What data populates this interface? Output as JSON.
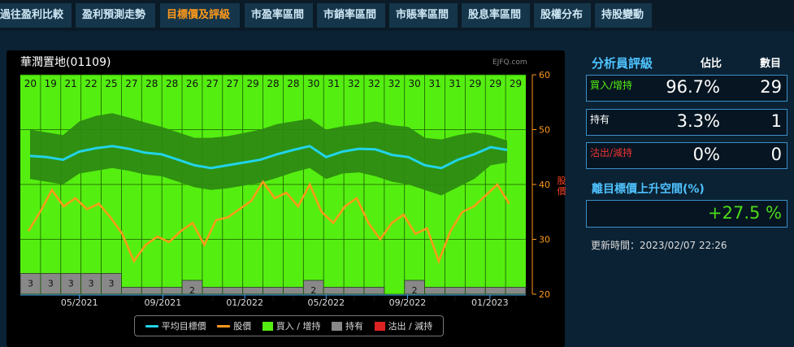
{
  "tabs": [
    {
      "label": "過往盈利比較",
      "active": false
    },
    {
      "label": "盈利預測走勢",
      "active": false
    },
    {
      "label": "目標價及評級",
      "active": true
    },
    {
      "label": "市盈率區間",
      "active": false
    },
    {
      "label": "市銷率區間",
      "active": false
    },
    {
      "label": "市賬率區間",
      "active": false
    },
    {
      "label": "股息率區間",
      "active": false
    },
    {
      "label": "股權分布",
      "active": false
    },
    {
      "label": "持股變動",
      "active": false
    }
  ],
  "chart_panel": {
    "title": "華潤置地(01109)",
    "source": "EJFQ.com"
  },
  "chart_data": {
    "type": "line",
    "x_tick_labels": [
      "05/2021",
      "09/2021",
      "01/2022",
      "05/2022",
      "09/2022",
      "01/2023"
    ],
    "y_right_ticks": [
      20,
      30,
      40,
      50,
      60
    ],
    "ylim": [
      20,
      60
    ],
    "ylabel": "股價",
    "grid": true,
    "legend_position": "bottom",
    "buy_counts": [
      20,
      19,
      21,
      22,
      25,
      27,
      28,
      28,
      26,
      27,
      27,
      29,
      28,
      28,
      30,
      31,
      32,
      32,
      32,
      30,
      31,
      31,
      29,
      29,
      29
    ],
    "hold_counts": [
      3,
      3,
      3,
      3,
      3,
      1,
      1,
      1,
      2,
      1,
      1,
      1,
      1,
      1,
      2,
      1,
      1,
      1,
      0,
      2,
      1,
      1,
      1,
      1,
      1
    ],
    "sell_counts": [
      0,
      0,
      0,
      0,
      0,
      0,
      0,
      0,
      0,
      0,
      0,
      0,
      0,
      0,
      0,
      0,
      0,
      0,
      0,
      0,
      0,
      0,
      0,
      0,
      0
    ],
    "avg_target": [
      45.2,
      45.0,
      44.5,
      46.0,
      46.6,
      47.0,
      46.5,
      45.8,
      45.5,
      44.5,
      43.5,
      43.0,
      43.5,
      44.0,
      44.5,
      45.5,
      46.3,
      47.0,
      45.0,
      46.0,
      46.5,
      46.4,
      45.4,
      45.0,
      43.5,
      43.0,
      44.5,
      45.5,
      46.8,
      46.3
    ],
    "target_high": [
      50.0,
      49.5,
      49.0,
      51.5,
      52.5,
      53.0,
      52.2,
      51.3,
      50.5,
      49.5,
      48.5,
      48.5,
      48.8,
      49.4,
      50.0,
      51.0,
      51.5,
      52.0,
      50.0,
      50.6,
      51.0,
      51.5,
      50.8,
      50.5,
      48.5,
      48.2,
      49.0,
      49.5,
      49.0,
      48.0
    ],
    "target_low": [
      41.0,
      40.5,
      40.0,
      42.0,
      42.5,
      43.0,
      42.5,
      41.8,
      41.5,
      40.5,
      39.5,
      39.0,
      39.3,
      39.8,
      40.3,
      41.2,
      42.2,
      43.0,
      41.0,
      42.0,
      42.2,
      41.5,
      40.5,
      40.0,
      39.0,
      38.0,
      39.5,
      41.0,
      43.5,
      44.0
    ],
    "price": [
      31.5,
      35.0,
      39.0,
      36.0,
      37.5,
      35.5,
      36.5,
      34.0,
      31.0,
      26.0,
      29.0,
      30.5,
      29.5,
      31.5,
      33.0,
      29.0,
      33.5,
      34.0,
      35.5,
      37.0,
      40.5,
      37.5,
      38.5,
      36.0,
      40.0,
      35.0,
      33.0,
      36.0,
      37.5,
      33.0,
      30.0,
      33.0,
      34.5,
      31.0,
      32.0,
      26.0,
      31.5,
      35.0,
      36.0,
      38.0,
      40.0,
      36.5
    ],
    "series": [
      {
        "name": "平均目標價",
        "color": "#22d3e8"
      },
      {
        "name": "股價",
        "color": "#ff9a1a"
      },
      {
        "name": "買入 / 增持",
        "color": "#55ee11"
      },
      {
        "name": "持有",
        "color": "#888888"
      },
      {
        "name": "沽出 / 減持",
        "color": "#dd2222"
      }
    ]
  },
  "ratings": {
    "title": "分析員評級",
    "col_pct": "佔比",
    "col_count": "數目",
    "rows": [
      {
        "label": "買入/增持",
        "pct": "96.7%",
        "count": "29",
        "color": "#55ee11"
      },
      {
        "label": "持有",
        "pct": "3.3%",
        "count": "1",
        "color": "#ffffff"
      },
      {
        "label": "沽出/減持",
        "pct": "0%",
        "count": "0",
        "color": "#ee3333"
      }
    ]
  },
  "upside": {
    "title": "離目標價上升空間(%)",
    "value": "+27.5 %"
  },
  "updated": "更新時間：2023/02/07 22:26"
}
